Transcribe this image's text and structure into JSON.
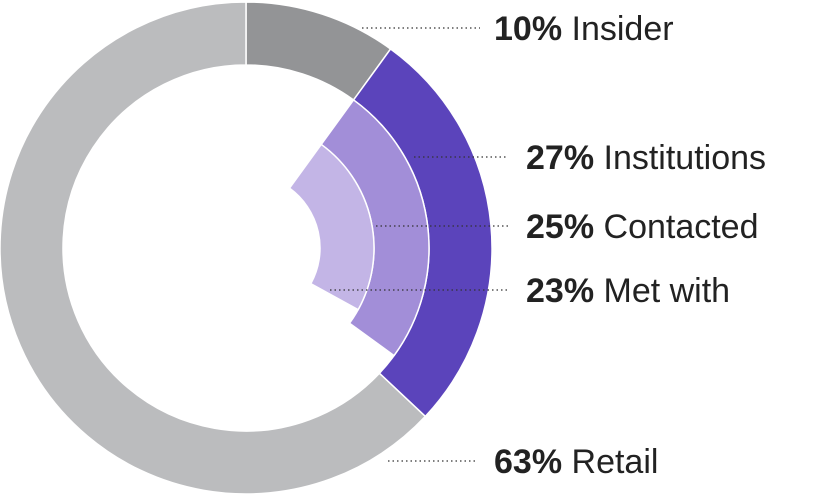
{
  "chart_data": {
    "type": "pie",
    "title": "",
    "rings": [
      {
        "ring": "outer",
        "slices": [
          {
            "label": "Insider",
            "value": 10,
            "value_label": "10%",
            "color": "#939496"
          },
          {
            "label": "Institutions",
            "value": 27,
            "value_label": "27%",
            "color": "#5b44bb"
          },
          {
            "label": "Retail",
            "value": 63,
            "value_label": "63%",
            "color": "#bbbcbe"
          }
        ]
      },
      {
        "ring": "middle",
        "slices": [
          {
            "label": "Contacted",
            "value": 25,
            "value_label": "25%",
            "color": "#a28ed8"
          }
        ]
      },
      {
        "ring": "inner",
        "slices": [
          {
            "label": "Met with",
            "value": 23,
            "value_label": "23%",
            "color": "#c3b5e6"
          }
        ]
      }
    ],
    "separator_color": "#ffffff"
  }
}
